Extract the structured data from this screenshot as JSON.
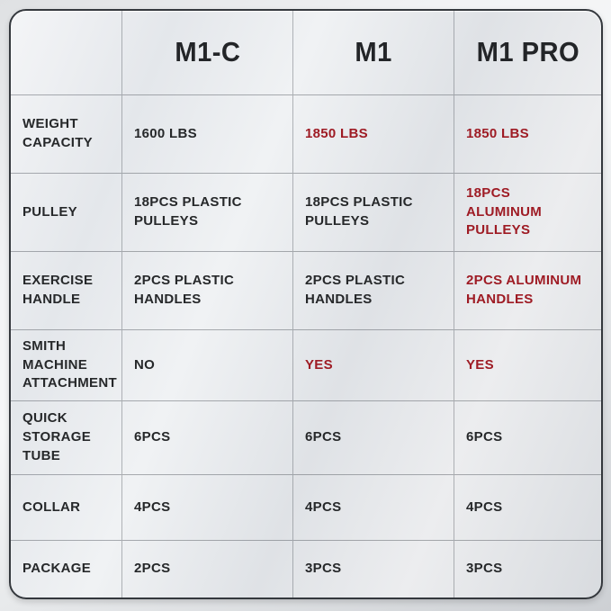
{
  "chart_data": {
    "type": "table",
    "title": "",
    "columns": [
      "M1-C",
      "M1",
      "M1 PRO"
    ],
    "highlight_color": "#9E1B24",
    "text_color": "#26282A",
    "rows": [
      {
        "label": "WEIGHT CAPACITY",
        "label_display": "WEIGHT\nCAPACITY",
        "cells": [
          {
            "text": "1600 LBS",
            "display": "1600 LBS",
            "highlight": false
          },
          {
            "text": "1850 LBS",
            "display": "1850 LBS",
            "highlight": true
          },
          {
            "text": "1850 LBS",
            "display": "1850 LBS",
            "highlight": true
          }
        ]
      },
      {
        "label": "PULLEY",
        "label_display": "PULLEY",
        "cells": [
          {
            "text": "18PCS PLASTIC PULLEYS",
            "display": "18PCS PLASTIC\nPULLEYS",
            "highlight": false
          },
          {
            "text": "18PCS PLASTIC PULLEYS",
            "display": "18PCS PLASTIC\nPULLEYS",
            "highlight": false
          },
          {
            "text": "18PCS ALUMINUM PULLEYS",
            "display": "18PCS\nALUMINUM PULLEYS",
            "highlight": true
          }
        ]
      },
      {
        "label": "EXERCISE HANDLE",
        "label_display": "EXERCISE\nHANDLE",
        "cells": [
          {
            "text": "2PCS PLASTIC HANDLES",
            "display": "2PCS PLASTIC\nHANDLES",
            "highlight": false
          },
          {
            "text": "2PCS PLASTIC HANDLES",
            "display": "2PCS PLASTIC\nHANDLES",
            "highlight": false
          },
          {
            "text": "2PCS ALUMINUM HANDLES",
            "display": "2PCS ALUMINUM\nHANDLES",
            "highlight": true
          }
        ]
      },
      {
        "label": "SMITH MACHINE ATTACHMENT",
        "label_display": "SMITH MACHINE\nATTACHMENT",
        "cells": [
          {
            "text": "NO",
            "display": "NO",
            "highlight": false
          },
          {
            "text": "YES",
            "display": "YES",
            "highlight": true
          },
          {
            "text": "YES",
            "display": "YES",
            "highlight": true
          }
        ]
      },
      {
        "label": "QUICK STORAGE TUBE",
        "label_display": "QUICK\nSTORAGE TUBE",
        "cells": [
          {
            "text": "6PCS",
            "display": "6PCS",
            "highlight": false
          },
          {
            "text": "6PCS",
            "display": "6PCS",
            "highlight": false
          },
          {
            "text": "6PCS",
            "display": "6PCS",
            "highlight": false
          }
        ]
      },
      {
        "label": "COLLAR",
        "label_display": "COLLAR",
        "cells": [
          {
            "text": "4PCS",
            "display": "4PCS",
            "highlight": false
          },
          {
            "text": "4PCS",
            "display": "4PCS",
            "highlight": false
          },
          {
            "text": "4PCS",
            "display": "4PCS",
            "highlight": false
          }
        ]
      },
      {
        "label": "PACKAGE",
        "label_display": "PACKAGE",
        "cells": [
          {
            "text": "2PCS",
            "display": "2PCS",
            "highlight": false
          },
          {
            "text": "3PCS",
            "display": "3PCS",
            "highlight": false
          },
          {
            "text": "3PCS",
            "display": "3PCS",
            "highlight": false
          }
        ]
      }
    ]
  }
}
